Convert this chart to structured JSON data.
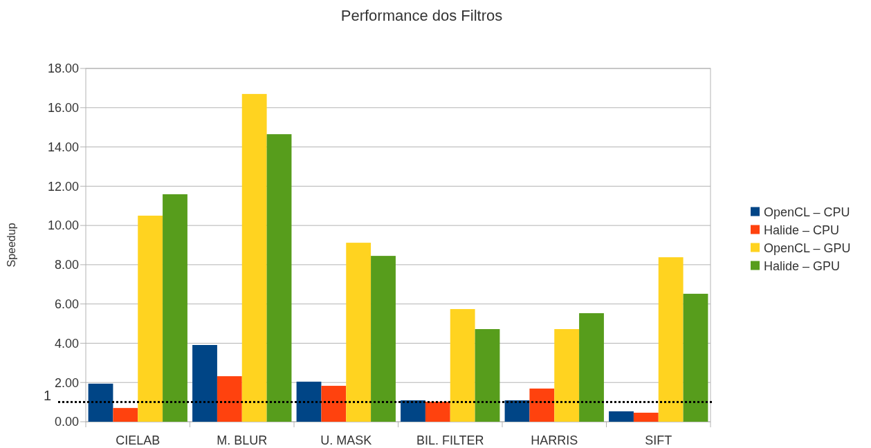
{
  "chart_data": {
    "type": "bar",
    "title": "Performance dos Filtros",
    "ylabel": "Speedup",
    "categories": [
      "CIELAB",
      "M. BLUR",
      "U. MASK",
      "BIL. FILTER",
      "HARRIS",
      "SIFT"
    ],
    "series": [
      {
        "name": "OpenCL – CPU",
        "color": "#004586",
        "values": [
          1.94,
          3.91,
          2.04,
          1.09,
          1.09,
          0.53
        ]
      },
      {
        "name": "Halide – CPU",
        "color": "#ff420e",
        "values": [
          0.7,
          2.32,
          1.83,
          1.02,
          1.69,
          0.46
        ]
      },
      {
        "name": "OpenCL – GPU",
        "color": "#ffd320",
        "values": [
          10.5,
          16.7,
          9.12,
          5.74,
          4.72,
          8.38
        ]
      },
      {
        "name": "Halide – GPU",
        "color": "#579d1c",
        "values": [
          11.59,
          14.65,
          8.45,
          4.72,
          5.53,
          6.52
        ]
      }
    ],
    "ylim": [
      0,
      18
    ],
    "yticks": [
      {
        "value": 0,
        "label": "0.00"
      },
      {
        "value": 2,
        "label": "2.00"
      },
      {
        "value": 4,
        "label": "4.00"
      },
      {
        "value": 6,
        "label": "6.00"
      },
      {
        "value": 8,
        "label": "8.00"
      },
      {
        "value": 10,
        "label": "10.00"
      },
      {
        "value": 12,
        "label": "12.00"
      },
      {
        "value": 14,
        "label": "14.00"
      },
      {
        "value": 16,
        "label": "16.00"
      },
      {
        "value": 18,
        "label": "18.00"
      }
    ],
    "ref_lines": [
      {
        "axis": "y",
        "value": 1,
        "label": "1",
        "color": "#000000",
        "line_style": "dotted"
      }
    ],
    "grid": "y",
    "legend": "right"
  }
}
